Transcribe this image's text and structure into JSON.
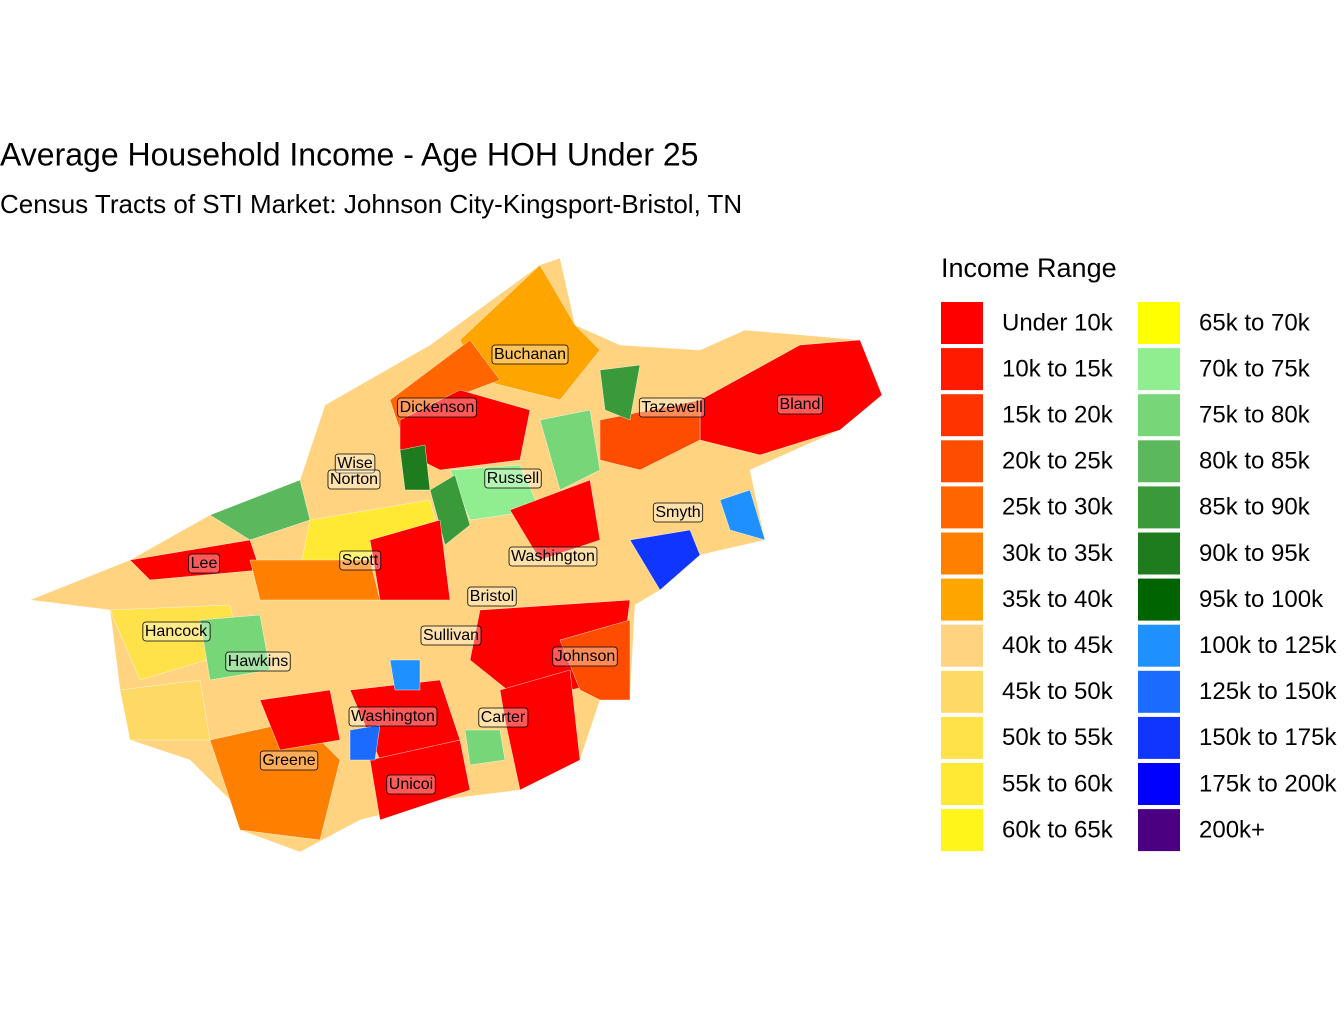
{
  "title": "Average Household Income - Age HOH Under 25",
  "subtitle": "Census Tracts of STI Market: Johnson City-Kingsport-Bristol, TN",
  "legend": {
    "title": "Income Range",
    "items": [
      {
        "label": "Under 10k",
        "color": "#FF0000"
      },
      {
        "label": "10k to 15k",
        "color": "#FF1A00"
      },
      {
        "label": "15k to 20k",
        "color": "#FF3300"
      },
      {
        "label": "20k to 25k",
        "color": "#FF4D00"
      },
      {
        "label": "25k to 30k",
        "color": "#FF6600"
      },
      {
        "label": "30k to 35k",
        "color": "#FF8000"
      },
      {
        "label": "35k to 40k",
        "color": "#FFA500"
      },
      {
        "label": "40k to 45k",
        "color": "#FFD37F"
      },
      {
        "label": "45k to 50k",
        "color": "#FFD966"
      },
      {
        "label": "50k to 55k",
        "color": "#FFE14A"
      },
      {
        "label": "55k to 60k",
        "color": "#FFE933"
      },
      {
        "label": "60k to 65k",
        "color": "#FFF51A"
      },
      {
        "label": "65k to 70k",
        "color": "#FFFF00"
      },
      {
        "label": "70k to 75k",
        "color": "#90EE90"
      },
      {
        "label": "75k to 80k",
        "color": "#77D677"
      },
      {
        "label": "80k to 85k",
        "color": "#5CB85C"
      },
      {
        "label": "85k to 90k",
        "color": "#3A9A3A"
      },
      {
        "label": "90k to 95k",
        "color": "#1E7B1E"
      },
      {
        "label": "95k to 100k",
        "color": "#006400"
      },
      {
        "label": "100k to 125k",
        "color": "#1E90FF"
      },
      {
        "label": "125k to 150k",
        "color": "#1C6BFF"
      },
      {
        "label": "150k to 175k",
        "color": "#0F35FF"
      },
      {
        "label": "175k to 200k",
        "color": "#0000FF"
      },
      {
        "label": "200k+",
        "color": "#4B0082"
      }
    ]
  },
  "labels": [
    "Buchanan",
    "Dickenson",
    "Tazewell",
    "Bland",
    "Wise",
    "Norton",
    "Russell",
    "Smyth",
    "Lee",
    "Scott",
    "Washington",
    "Bristol",
    "Hancock",
    "Sullivan",
    "Johnson",
    "Hawkins",
    "Washington",
    "Carter",
    "Greene",
    "Unicoi"
  ]
}
